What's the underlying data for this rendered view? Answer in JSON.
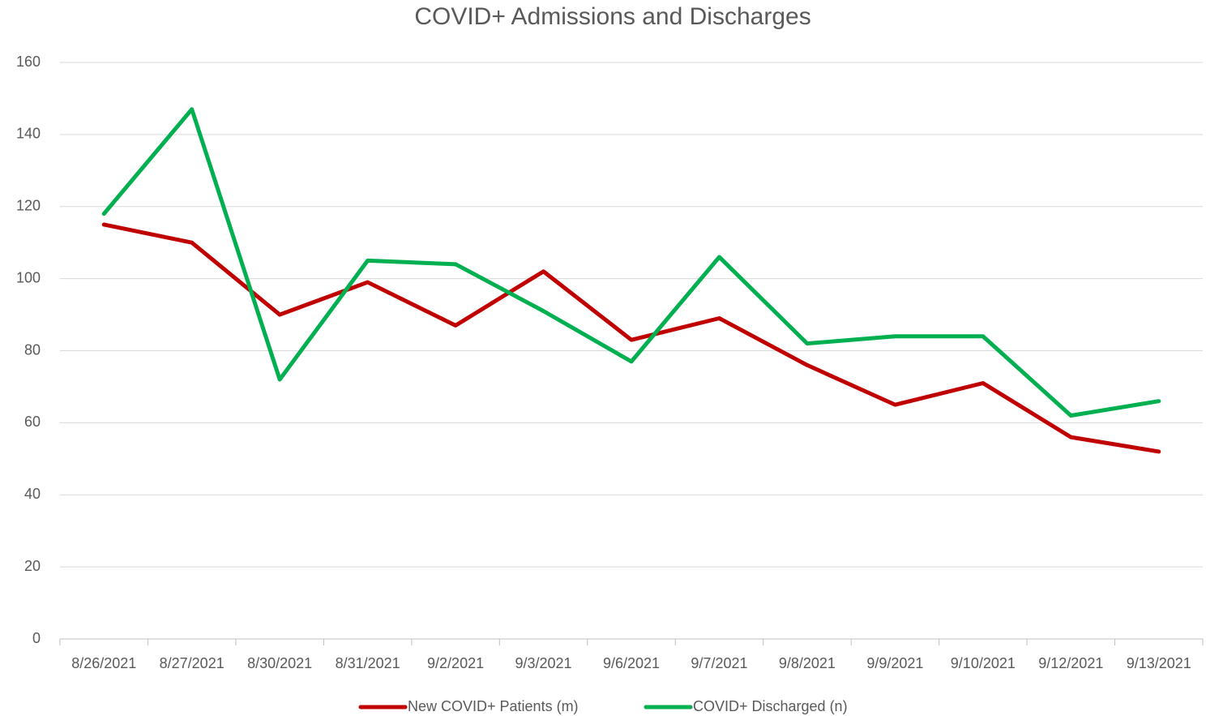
{
  "chart_data": {
    "type": "line",
    "title": "COVID+ Admissions and Discharges",
    "categories": [
      "8/26/2021",
      "8/27/2021",
      "8/30/2021",
      "8/31/2021",
      "9/2/2021",
      "9/3/2021",
      "9/6/2021",
      "9/7/2021",
      "9/8/2021",
      "9/9/2021",
      "9/10/2021",
      "9/12/2021",
      "9/13/2021"
    ],
    "series": [
      {
        "name": "New COVID+ Patients (m)",
        "color": "#c00000",
        "values": [
          115,
          110,
          90,
          99,
          87,
          102,
          83,
          89,
          76,
          65,
          71,
          56,
          52
        ]
      },
      {
        "name": "COVID+ Discharged (n)",
        "color": "#00b050",
        "values": [
          118,
          147,
          72,
          105,
          104,
          91,
          77,
          106,
          82,
          84,
          84,
          62,
          66
        ]
      }
    ],
    "ylim": [
      0,
      160
    ],
    "yticks": [
      0,
      20,
      40,
      60,
      80,
      100,
      120,
      140,
      160
    ],
    "grid": true,
    "legend": "bottom"
  }
}
